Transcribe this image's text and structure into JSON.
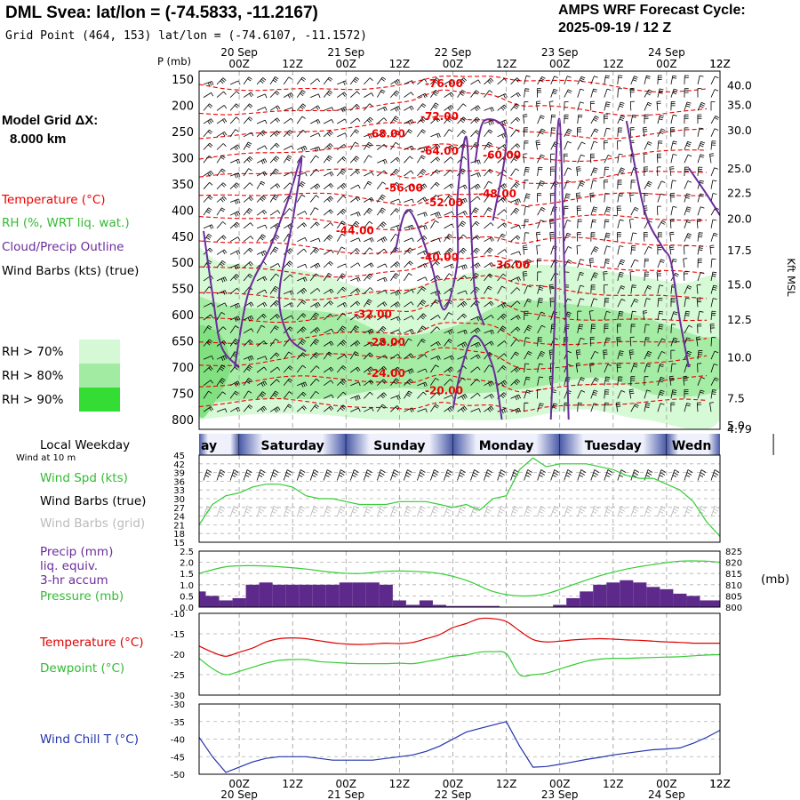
{
  "header": {
    "title": "DML Svea:  lat/lon = (-74.5833, -11.2167)",
    "subtitle": "Grid Point (464, 153) lat/lon = (-74.6107, -11.1572)",
    "cycle_line1": "AMPS WRF Forecast Cycle:",
    "cycle_line2": "2025-09-19 / 12  Z"
  },
  "legend": {
    "grid_label": "Model Grid ΔX:",
    "grid_value": "8.000 km",
    "temperature": "Temperature (°C)",
    "rh": "RH (%, WRT liq. wat.)",
    "cloud": "Cloud/Precip Outline",
    "barbs": "Wind Barbs (kts) (true)",
    "rh_levels": [
      {
        "label": "RH > 70%",
        "color": "#d4f9d4"
      },
      {
        "label": "RH > 80%",
        "color": "#a2eba2"
      },
      {
        "label": "RH > 90%",
        "color": "#33dd33"
      }
    ]
  },
  "colors": {
    "temperature": "#ee0000",
    "rh": "#33cc33",
    "cloud": "#6a2c9a",
    "wind_speed": "#33cc33",
    "pressure": "#33cc33",
    "precip": "#5d2a8c",
    "dewpoint": "#33cc33",
    "wind_chill": "#2233aa",
    "grid_barbs": "#b8b8b8"
  },
  "time_axis": {
    "ticks": [
      "00Z",
      "12Z",
      "00Z",
      "12Z",
      "00Z",
      "12Z",
      "00Z",
      "12Z",
      "00Z",
      "12Z"
    ],
    "dates": [
      "20 Sep",
      "21 Sep",
      "22 Sep",
      "23 Sep",
      "24 Sep"
    ],
    "weekday_label": "Local Weekday",
    "weekdays": [
      "ay",
      "Saturday",
      "Sunday",
      "Monday",
      "Tuesday",
      "Wedn"
    ]
  },
  "chart_data": [
    {
      "type": "heatmap",
      "name": "profile",
      "ylabel": "P (mb)",
      "y2label": "Kft MSL",
      "pressure_ticks": [
        150,
        200,
        250,
        300,
        350,
        400,
        450,
        500,
        550,
        600,
        650,
        700,
        750,
        800
      ],
      "height_ticks": [
        {
          "label": "40.0",
          "p": 161
        },
        {
          "label": "35.0",
          "p": 198
        },
        {
          "label": "30.0",
          "p": 247
        },
        {
          "label": "25.0",
          "p": 320
        },
        {
          "label": "22.5",
          "p": 366
        },
        {
          "label": "20.0",
          "p": 416
        },
        {
          "label": "17.5",
          "p": 476
        },
        {
          "label": "15.0",
          "p": 541
        },
        {
          "label": "12.5",
          "p": 608
        },
        {
          "label": "10.0",
          "p": 680
        },
        {
          "label": "7.5",
          "p": 758
        },
        {
          "label": "5.0",
          "p": 810
        },
        {
          "label": "4.79",
          "p": 817
        }
      ],
      "temperature_labels": [
        {
          "label": "-76.00",
          "t": 55,
          "p": 157
        },
        {
          "label": "-72.00",
          "t": 54,
          "p": 220
        },
        {
          "label": "-68.00",
          "t": 42,
          "p": 253
        },
        {
          "label": "-64.00",
          "t": 54,
          "p": 286
        },
        {
          "label": "-60.00",
          "t": 68,
          "p": 293
        },
        {
          "label": "-56.00",
          "t": 46,
          "p": 356
        },
        {
          "label": "-52.00",
          "t": 55,
          "p": 384
        },
        {
          "label": "-48.00",
          "t": 67,
          "p": 367
        },
        {
          "label": "-44.00",
          "t": 35,
          "p": 438
        },
        {
          "label": "-40.00",
          "t": 54,
          "p": 489
        },
        {
          "label": "-36.00",
          "t": 70,
          "p": 503
        },
        {
          "label": "-32.00",
          "t": 39,
          "p": 597
        },
        {
          "label": "-28.00",
          "t": 42,
          "p": 651
        },
        {
          "label": "-24.00",
          "t": 42,
          "p": 710
        },
        {
          "label": "-20.00",
          "t": 55,
          "p": 743
        }
      ]
    },
    {
      "type": "line",
      "name": "wind",
      "title_left": "Wind at 10 m",
      "series": [
        {
          "name": "Wind Spd (kts)",
          "x": [
            0,
            3,
            6,
            9,
            12,
            15,
            18,
            21,
            24,
            27,
            30,
            33,
            36,
            39,
            42,
            45,
            48,
            51,
            54,
            57,
            60,
            63,
            66,
            69,
            72,
            75,
            78,
            81,
            84,
            87,
            90,
            93,
            96,
            99,
            102,
            105,
            108,
            111,
            114,
            117
          ],
          "values": [
            21,
            28,
            31,
            32,
            34,
            35,
            35,
            34,
            31,
            30,
            30,
            29,
            28,
            28,
            28,
            29,
            29,
            29,
            28,
            27,
            28,
            26,
            30,
            31,
            40,
            44,
            41,
            42,
            42,
            42,
            41,
            40,
            38,
            37,
            37,
            35,
            33,
            29,
            22,
            17
          ]
        }
      ],
      "other_labels": [
        "Wind Barbs (true)",
        "Wind Barbs (grid)"
      ],
      "yticks": [
        15,
        18,
        21,
        24,
        27,
        30,
        33,
        36,
        39,
        42,
        45
      ],
      "ylim": [
        15,
        45
      ]
    },
    {
      "type": "bar",
      "name": "precip",
      "series": [
        {
          "name": "Precip (mm)",
          "x": [
            0,
            3,
            6,
            9,
            12,
            15,
            18,
            21,
            24,
            27,
            30,
            33,
            36,
            39,
            42,
            45,
            48,
            51,
            54,
            57,
            60,
            63,
            66,
            69,
            72,
            75,
            78,
            81,
            84,
            87,
            90,
            93,
            96,
            99,
            102,
            105,
            108,
            111,
            114,
            117
          ],
          "values": [
            0.7,
            0.5,
            0.3,
            0.4,
            1.0,
            1.1,
            1.0,
            1.0,
            1.0,
            1.0,
            1.0,
            1.1,
            1.1,
            1.1,
            1.0,
            0.3,
            0.1,
            0.3,
            0.1,
            0.05,
            0.05,
            0.05,
            0.05,
            0.0,
            0.0,
            0.0,
            0.0,
            0.1,
            0.4,
            0.7,
            1.0,
            1.1,
            1.2,
            1.1,
            0.9,
            0.8,
            0.6,
            0.5,
            0.3,
            0.3
          ]
        }
      ],
      "labels_left": [
        "Precip (mm)",
        "liq. equiv.",
        "3-hr accum"
      ],
      "yticks": [
        0.0,
        0.5,
        1.0,
        1.5,
        2.0,
        2.5
      ],
      "ylim": [
        0,
        2.5
      ],
      "pressure": {
        "name": "Pressure (mb)",
        "x": [
          0,
          6,
          12,
          18,
          24,
          30,
          36,
          42,
          48,
          54,
          60,
          66,
          72,
          78,
          84,
          90,
          96,
          102,
          108,
          114,
          117
        ],
        "values": [
          815,
          818,
          818.5,
          818,
          817,
          815.5,
          815,
          816,
          816,
          815,
          812,
          807,
          805,
          806,
          810,
          814,
          817,
          819,
          820.5,
          820.5,
          820
        ],
        "yticks": [
          800,
          805,
          810,
          815,
          820,
          825
        ],
        "ylim": [
          800,
          825
        ],
        "unit": "(mb)"
      }
    },
    {
      "type": "line",
      "name": "temperature",
      "series": [
        {
          "name": "Temperature (°C)",
          "x": [
            0,
            3,
            6,
            9,
            12,
            15,
            18,
            21,
            24,
            27,
            30,
            33,
            36,
            39,
            42,
            45,
            48,
            51,
            54,
            57,
            60,
            63,
            66,
            69,
            72,
            75,
            78,
            81,
            84,
            87,
            90,
            93,
            96,
            99,
            102,
            105,
            108,
            111,
            114,
            117
          ],
          "values": [
            -18,
            -19.5,
            -20.5,
            -19.5,
            -18.5,
            -17,
            -16.2,
            -16,
            -16.2,
            -16.7,
            -17.2,
            -17.5,
            -17.6,
            -17.5,
            -17.3,
            -17.4,
            -17.1,
            -16.2,
            -15.2,
            -13.5,
            -12.5,
            -11.3,
            -11.3,
            -12.0,
            -14.3,
            -16.4,
            -17.0,
            -16.8,
            -16.5,
            -16.3,
            -16.2,
            -16.3,
            -16.5,
            -16.6,
            -16.8,
            -17.0,
            -17.1,
            -17.3,
            -17.3,
            -17.3
          ]
        },
        {
          "name": "Dewpoint (°C)",
          "x": [
            0,
            3,
            6,
            9,
            12,
            15,
            18,
            21,
            24,
            27,
            30,
            33,
            36,
            39,
            42,
            45,
            48,
            51,
            54,
            57,
            60,
            63,
            66,
            69,
            72,
            75,
            78,
            81,
            84,
            87,
            90,
            93,
            96,
            99,
            102,
            105,
            108,
            111,
            114,
            117
          ],
          "values": [
            -21,
            -23.5,
            -25,
            -24.2,
            -23.2,
            -22.2,
            -21.5,
            -21.3,
            -21.3,
            -21.8,
            -22,
            -22.2,
            -22.3,
            -22.3,
            -22.3,
            -22.2,
            -22.3,
            -21.8,
            -21.2,
            -20.5,
            -20.2,
            -19.5,
            -19.4,
            -19.9,
            -25.0,
            -25.0,
            -24.6,
            -23.6,
            -22.6,
            -21.7,
            -21.2,
            -21.0,
            -21.0,
            -20.9,
            -20.8,
            -20.7,
            -20.6,
            -20.4,
            -20.2,
            -20.1
          ]
        }
      ],
      "yticks": [
        -30,
        -25,
        -20,
        -15,
        -10
      ],
      "ylim": [
        -30,
        -10
      ]
    },
    {
      "type": "line",
      "name": "windchill",
      "series": [
        {
          "name": "Wind Chill T (°C)",
          "x": [
            0,
            3,
            6,
            9,
            12,
            15,
            18,
            21,
            24,
            27,
            30,
            33,
            36,
            39,
            42,
            45,
            48,
            51,
            54,
            57,
            60,
            63,
            66,
            69,
            72,
            75,
            78,
            81,
            84,
            87,
            90,
            93,
            96,
            99,
            102,
            105,
            108,
            111,
            114,
            117
          ],
          "values": [
            -39.5,
            -45,
            -49.5,
            -48,
            -46.5,
            -45.5,
            -45,
            -45,
            -45,
            -45.5,
            -46,
            -46,
            -46,
            -46,
            -45.5,
            -45,
            -44.5,
            -43.5,
            -42,
            -40,
            -38,
            -37,
            -36,
            -35,
            -42,
            -48,
            -47.8,
            -47.2,
            -46.5,
            -45.8,
            -45.2,
            -44.5,
            -44,
            -43.5,
            -43,
            -42.8,
            -42.5,
            -41.2,
            -39.5,
            -37.5
          ]
        }
      ],
      "yticks": [
        -50,
        -45,
        -40,
        -35,
        -30
      ],
      "ylim": [
        -50,
        -30
      ]
    }
  ]
}
